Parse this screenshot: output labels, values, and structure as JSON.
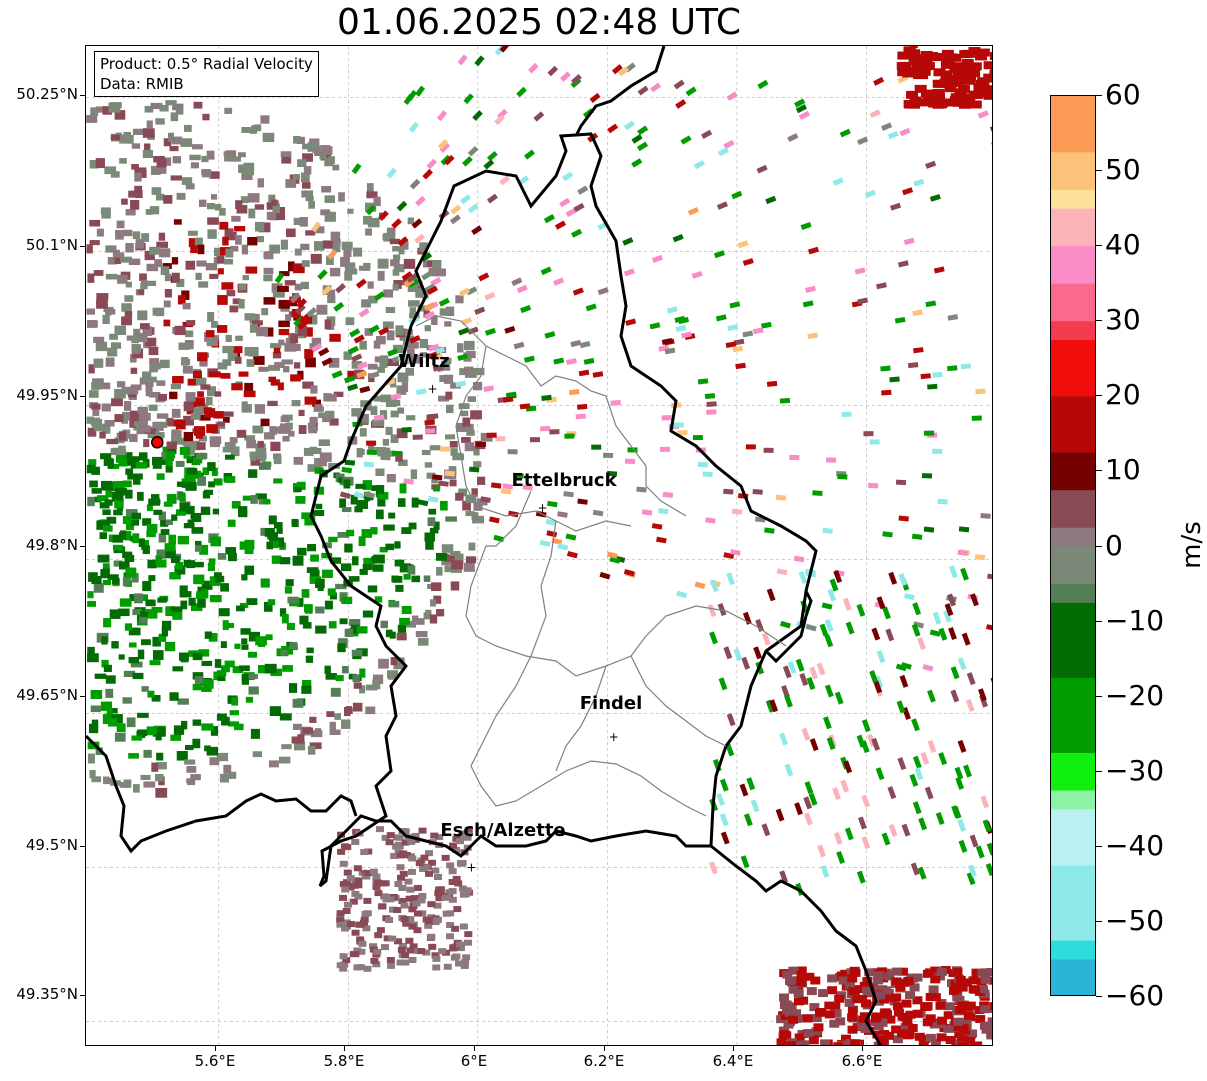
{
  "title": "01.06.2025 02:48 UTC",
  "info_box": {
    "product": "Product: 0.5° Radial Velocity",
    "data": "Data: RMIB"
  },
  "lat_labels": [
    "50.25°N",
    "50.1°N",
    "49.95°N",
    "49.8°N",
    "49.65°N",
    "49.5°N",
    "49.35°N"
  ],
  "lon_labels": [
    "5.6°E",
    "5.8°E",
    "6°E",
    "6.2°E",
    "6.4°E",
    "6.6°E"
  ],
  "cities": [
    {
      "name": "Wiltz",
      "lon": 5.93,
      "lat": 49.966
    },
    {
      "name": "Ettelbruck",
      "lon": 6.1,
      "lat": 49.85
    },
    {
      "name": "Findel",
      "lon": 6.21,
      "lat": 49.627
    },
    {
      "name": "Esch/Alzette",
      "lon": 5.99,
      "lat": 49.5
    }
  ],
  "radar_site": {
    "lon": 5.505,
    "lat": 49.914
  },
  "colorbar": {
    "unit": "m/s",
    "min": -60,
    "max": 60,
    "tick_labels": [
      "60",
      "50",
      "40",
      "30",
      "20",
      "10",
      "0",
      "−10",
      "−20",
      "−30",
      "−40",
      "−50",
      "−60"
    ],
    "stops": [
      {
        "v": 60,
        "c": "#fd9a56"
      },
      {
        "v": 52,
        "c": "#fdc27a"
      },
      {
        "v": 47,
        "c": "#fde29e"
      },
      {
        "v": 44,
        "c": "#fbb3b9"
      },
      {
        "v": 40,
        "c": "#f98cc6"
      },
      {
        "v": 35,
        "c": "#f96a8c"
      },
      {
        "v": 31,
        "c": "#f53b4f"
      },
      {
        "v": 28,
        "c": "#f20d0d"
      },
      {
        "v": 20,
        "c": "#b70808"
      },
      {
        "v": 13,
        "c": "#750000"
      },
      {
        "v": 8,
        "c": "#8a4a55"
      },
      {
        "v": 3,
        "c": "#8d7a80"
      },
      {
        "v": 0,
        "c": "#7b8a78"
      },
      {
        "v": -5,
        "c": "#547f56"
      },
      {
        "v": -7,
        "c": "#036b03"
      },
      {
        "v": -17,
        "c": "#009d00"
      },
      {
        "v": -27,
        "c": "#0ff00f"
      },
      {
        "v": -33,
        "c": "#8ef1a8"
      },
      {
        "v": -35,
        "c": "#b9f0f0"
      },
      {
        "v": -43,
        "c": "#8ee9e9"
      },
      {
        "v": -52,
        "c": "#2ddcdc"
      },
      {
        "v": -55,
        "c": "#2ab5d6"
      },
      {
        "v": -60,
        "c": "#2a7fc6"
      }
    ]
  },
  "colors": {
    "border": "#000000",
    "admin_border": "#808080",
    "grid": "#b0b0b0",
    "radar_marker": "#ff0000"
  }
}
